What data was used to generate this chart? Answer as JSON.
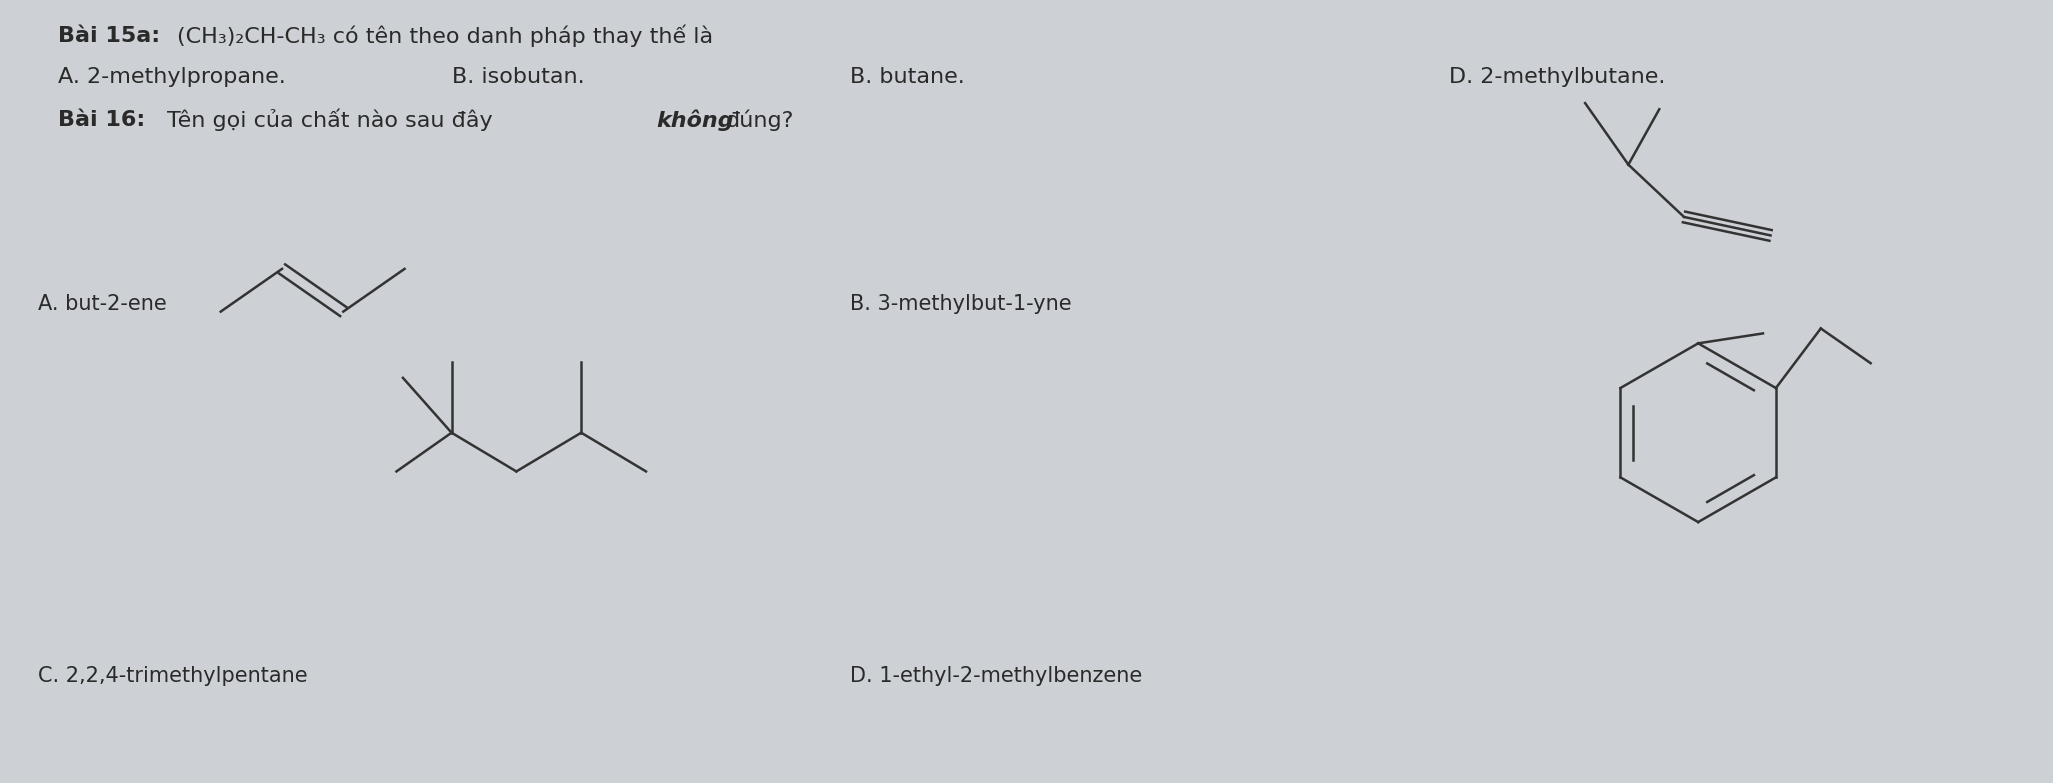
{
  "bg_color": "#cdd1d5",
  "title_bai15": "Bài 15a:",
  "formula_15": "(CH₃)₂CH-CH₃",
  "text_15": " có tên theo danh pháp thay thế là",
  "option_A_15": "A. 2-methylpropane.",
  "option_B_15": "B. isobutan.",
  "option_C_15": "B. butane.",
  "option_D_15": "D. 2-methylbutane.",
  "title_bai16": "Bài 16:",
  "text_16": " Tên gọi của chất nào sau đây ",
  "bold_16": "không",
  "text_16b": " đúng?",
  "label_A": "A. but-2-ene",
  "label_B": "B. 3-methylbut-1-yne",
  "label_C": "C. 2,2,4-trimethylpentane",
  "label_D": "D. 1-ethyl-2-methylbenzene",
  "text_color": "#2a2a2a",
  "line_color": "#333333",
  "font_size_main": 16,
  "font_size_label": 15
}
